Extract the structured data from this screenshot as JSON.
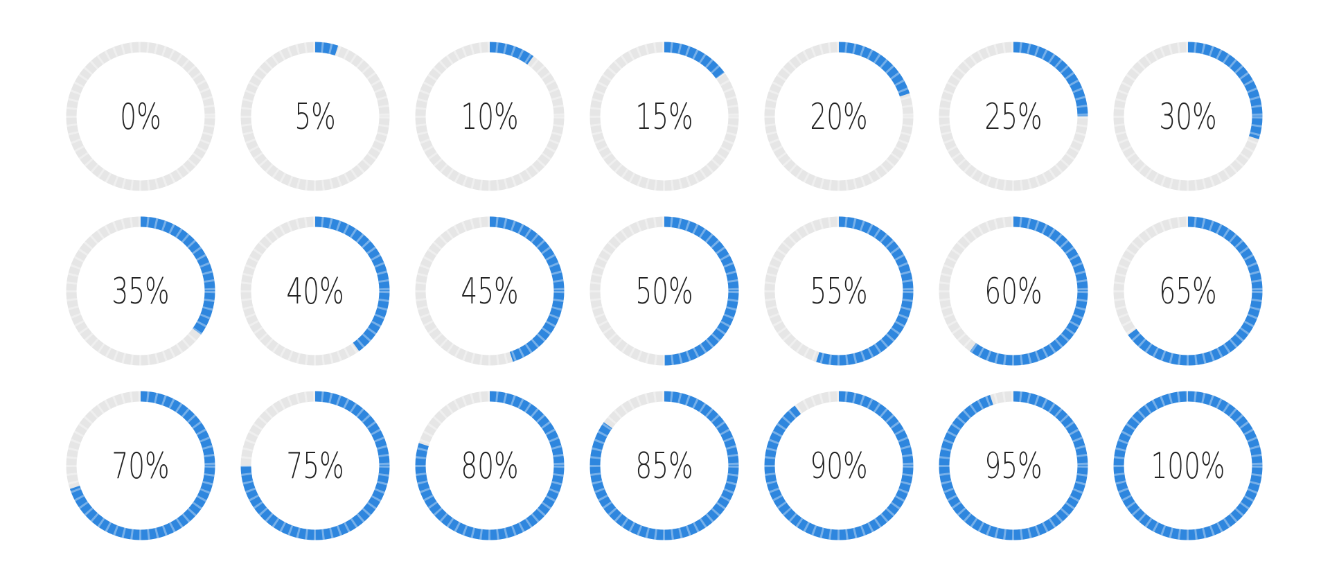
{
  "chart_data": {
    "type": "progress-ring",
    "values": [
      0,
      5,
      10,
      15,
      20,
      25,
      30,
      35,
      40,
      45,
      50,
      55,
      60,
      65,
      70,
      75,
      80,
      85,
      90,
      95,
      100
    ],
    "value_labels": [
      "0%",
      "5%",
      "10%",
      "15%",
      "20%",
      "25%",
      "30%",
      "35%",
      "40%",
      "45%",
      "50%",
      "55%",
      "60%",
      "65%",
      "70%",
      "75%",
      "80%",
      "85%",
      "90%",
      "95%",
      "100%"
    ],
    "ylim": [
      0,
      100
    ],
    "color": "#2e86de",
    "track_color": "#e6e6e6",
    "columns": 7
  }
}
